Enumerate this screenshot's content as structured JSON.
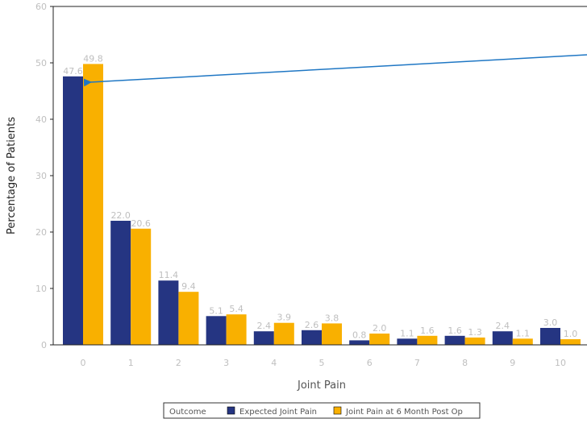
{
  "chart_data": {
    "type": "bar",
    "categories": [
      "0",
      "1",
      "2",
      "3",
      "4",
      "5",
      "6",
      "7",
      "8",
      "9",
      "10"
    ],
    "series": [
      {
        "name": "Expected Joint Pain",
        "color": "#253582",
        "values": [
          47.6,
          22.0,
          11.4,
          5.1,
          2.4,
          2.6,
          0.8,
          1.1,
          1.6,
          2.4,
          3.0
        ],
        "labels": [
          "47.6",
          "22.0",
          "11.4",
          "5.1",
          "2.4",
          "2.6",
          "0.8",
          "1.1",
          "1.6",
          "2.4",
          "3.0"
        ]
      },
      {
        "name": "Joint Pain at 6 Month Post Op",
        "color": "#f9b000",
        "values": [
          49.8,
          20.6,
          9.4,
          5.4,
          3.9,
          3.8,
          2.0,
          1.6,
          1.3,
          1.1,
          1.0
        ],
        "labels": [
          "49.8",
          "20.6",
          "9.4",
          "5.4",
          "3.9",
          "3.8",
          "2.0",
          "1.6",
          "1.3",
          "1.1",
          "1.0"
        ]
      }
    ],
    "xlabel": "Joint Pain",
    "ylabel": "Percentage of Patients",
    "ylim": [
      0,
      60
    ],
    "yticks": [
      "0",
      "10",
      "20",
      "30",
      "40",
      "50",
      "60"
    ],
    "grid": false,
    "legend": {
      "title": "Outcome",
      "position": "bottom-center"
    },
    "annotation_arrow": {
      "color": "#1f77c4"
    }
  }
}
